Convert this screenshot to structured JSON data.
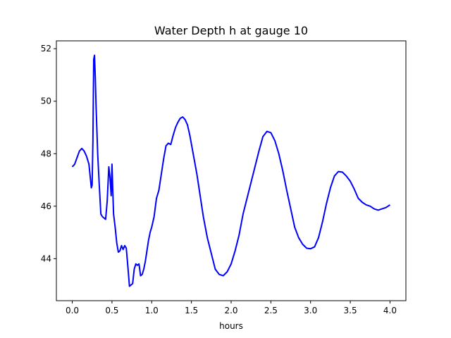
{
  "chart_data": {
    "type": "line",
    "title": "Water Depth h at gauge 10",
    "xlabel": "hours",
    "ylabel": "",
    "xlim": [
      -0.2,
      4.2
    ],
    "ylim": [
      42.4,
      52.3
    ],
    "xticks": [
      0.0,
      0.5,
      1.0,
      1.5,
      2.0,
      2.5,
      3.0,
      3.5,
      4.0
    ],
    "xtick_labels": [
      "0.0",
      "0.5",
      "1.0",
      "1.5",
      "2.0",
      "2.5",
      "3.0",
      "3.5",
      "4.0"
    ],
    "yticks": [
      44,
      46,
      48,
      50,
      52
    ],
    "ytick_labels": [
      "44",
      "46",
      "48",
      "50",
      "52"
    ],
    "grid": false,
    "series": [
      {
        "color": "#0000ff",
        "x": [
          0.0,
          0.03,
          0.06,
          0.09,
          0.12,
          0.15,
          0.18,
          0.21,
          0.23,
          0.24,
          0.25,
          0.26,
          0.27,
          0.28,
          0.29,
          0.3,
          0.32,
          0.34,
          0.36,
          0.38,
          0.4,
          0.42,
          0.44,
          0.46,
          0.475,
          0.49,
          0.5,
          0.51,
          0.52,
          0.54,
          0.56,
          0.58,
          0.6,
          0.62,
          0.64,
          0.66,
          0.68,
          0.7,
          0.72,
          0.74,
          0.76,
          0.78,
          0.8,
          0.82,
          0.84,
          0.86,
          0.88,
          0.9,
          0.92,
          0.94,
          0.96,
          0.98,
          1.0,
          1.03,
          1.06,
          1.09,
          1.12,
          1.15,
          1.18,
          1.21,
          1.24,
          1.27,
          1.3,
          1.33,
          1.36,
          1.39,
          1.42,
          1.45,
          1.48,
          1.51,
          1.54,
          1.57,
          1.6,
          1.65,
          1.7,
          1.75,
          1.8,
          1.85,
          1.9,
          1.95,
          2.0,
          2.05,
          2.1,
          2.15,
          2.2,
          2.25,
          2.3,
          2.35,
          2.4,
          2.45,
          2.5,
          2.55,
          2.6,
          2.65,
          2.7,
          2.75,
          2.8,
          2.85,
          2.9,
          2.95,
          3.0,
          3.05,
          3.1,
          3.15,
          3.2,
          3.25,
          3.3,
          3.35,
          3.4,
          3.45,
          3.5,
          3.55,
          3.6,
          3.65,
          3.7,
          3.75,
          3.8,
          3.85,
          3.9,
          3.95,
          4.0
        ],
        "y": [
          47.5,
          47.6,
          47.85,
          48.1,
          48.2,
          48.1,
          47.9,
          47.6,
          47.0,
          46.7,
          46.8,
          48.5,
          51.6,
          51.75,
          50.9,
          49.8,
          48.0,
          46.8,
          45.7,
          45.6,
          45.55,
          45.5,
          46.2,
          47.5,
          47.1,
          46.4,
          47.6,
          46.6,
          45.7,
          45.2,
          44.6,
          44.25,
          44.3,
          44.5,
          44.35,
          44.5,
          44.4,
          43.7,
          42.95,
          43.0,
          43.05,
          43.6,
          43.8,
          43.75,
          43.8,
          43.35,
          43.4,
          43.6,
          43.9,
          44.3,
          44.7,
          45.0,
          45.2,
          45.6,
          46.3,
          46.6,
          47.2,
          47.8,
          48.3,
          48.4,
          48.35,
          48.7,
          49.0,
          49.2,
          49.35,
          49.4,
          49.3,
          49.1,
          48.7,
          48.2,
          47.7,
          47.2,
          46.6,
          45.6,
          44.8,
          44.2,
          43.6,
          43.4,
          43.35,
          43.5,
          43.8,
          44.3,
          44.9,
          45.7,
          46.3,
          46.9,
          47.5,
          48.1,
          48.65,
          48.85,
          48.8,
          48.5,
          48.0,
          47.35,
          46.6,
          45.9,
          45.2,
          44.8,
          44.55,
          44.4,
          44.38,
          44.45,
          44.8,
          45.4,
          46.1,
          46.7,
          47.15,
          47.32,
          47.3,
          47.15,
          46.95,
          46.65,
          46.3,
          46.15,
          46.05,
          46.0,
          45.9,
          45.85,
          45.9,
          45.95,
          46.05
        ]
      }
    ]
  }
}
